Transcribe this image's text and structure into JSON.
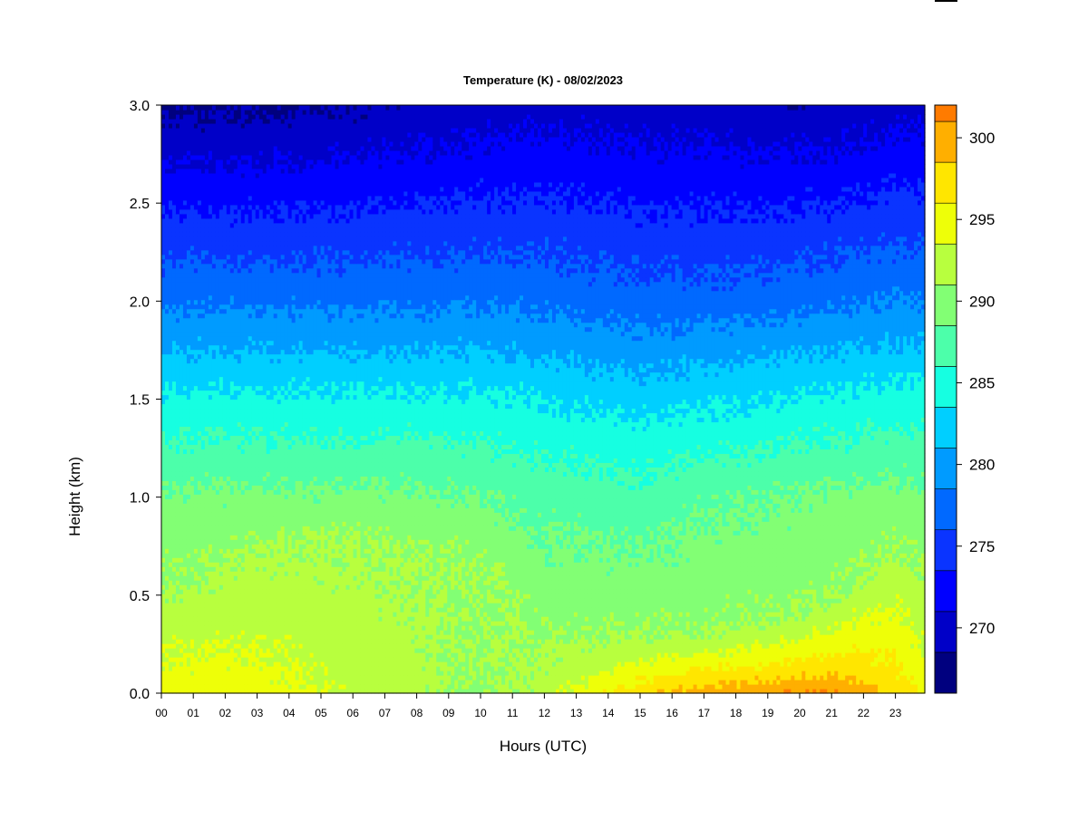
{
  "chart_data": {
    "type": "heatmap",
    "title": "Temperature (K) - 08/02/2023",
    "xlabel": "Hours (UTC)",
    "ylabel": "Height (km)",
    "x_ticks": [
      "00",
      "01",
      "02",
      "03",
      "04",
      "05",
      "06",
      "07",
      "08",
      "09",
      "10",
      "11",
      "12",
      "13",
      "14",
      "15",
      "16",
      "17",
      "18",
      "19",
      "20",
      "21",
      "22",
      "23"
    ],
    "x_range": [
      0,
      24
    ],
    "y_ticks": [
      "0.0",
      "0.5",
      "1.0",
      "1.5",
      "2.0",
      "2.5",
      "3.0"
    ],
    "y_range": [
      0,
      3.0
    ],
    "colorbar": {
      "range": [
        266,
        302
      ],
      "step": 2.5,
      "tick_labels": [
        "270",
        "275",
        "280",
        "285",
        "290",
        "295",
        "300"
      ],
      "colors": [
        "#00007f",
        "#0000c8",
        "#0000ff",
        "#0a34ff",
        "#0069ff",
        "#009bff",
        "#00cfff",
        "#16ffe1",
        "#4cffaa",
        "#82ff74",
        "#b8ff3e",
        "#eeff08",
        "#ffe600",
        "#ffaf00",
        "#ff7b00",
        "#ff4700",
        "#ff1300",
        "#cc0000",
        "#800000"
      ]
    },
    "temperature_profile": {
      "hours": [
        0,
        3,
        6,
        8,
        10,
        12,
        13,
        15,
        17,
        19,
        21,
        23,
        24
      ],
      "surface_temp_K": [
        295.5,
        295,
        293,
        292,
        290.5,
        292,
        294.5,
        298,
        300.5,
        301,
        301.5,
        298,
        295
      ],
      "boundary_layer_depth_km": [
        0.55,
        0.75,
        0.85,
        0.7,
        0.7,
        0.25,
        0.25,
        0.3,
        0.3,
        0.35,
        0.45,
        0.75,
        0.6
      ],
      "temp_at_1km_K": [
        289,
        289,
        289,
        289,
        288.5,
        287.5,
        287.5,
        287,
        288,
        288.5,
        289,
        289.5,
        289
      ],
      "temp_at_1_5km_K": [
        284,
        284,
        284,
        284,
        284,
        283.5,
        283,
        282.5,
        283,
        283.5,
        284,
        284.5,
        284.5
      ],
      "temp_at_2km_K": [
        278,
        278,
        278,
        278,
        278,
        278,
        277.5,
        277,
        277,
        277.5,
        278,
        278.5,
        278.5
      ],
      "temp_at_3km_K": [
        268,
        268,
        268.5,
        269,
        269.5,
        270,
        270,
        269.5,
        269.5,
        269,
        269,
        270,
        270
      ]
    }
  }
}
